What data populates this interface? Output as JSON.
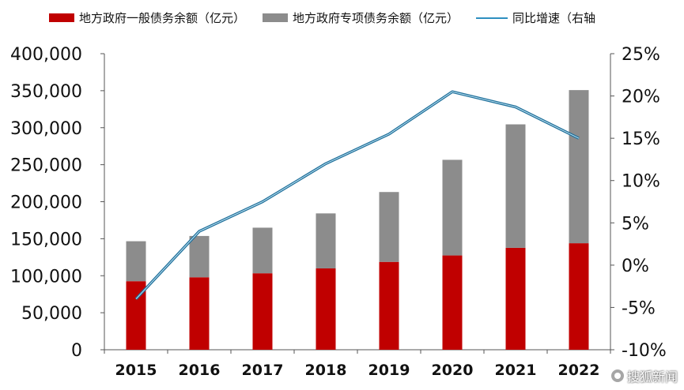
{
  "chart_data": {
    "type": "bar",
    "stacked": true,
    "title": "",
    "categories": [
      "2015",
      "2016",
      "2017",
      "2018",
      "2019",
      "2020",
      "2021",
      "2022"
    ],
    "series": [
      {
        "name": "地方政府一般债务余额（亿元）",
        "type": "bar",
        "axis": "left",
        "color": "#c00000",
        "values": [
          92600,
          97900,
          103300,
          109900,
          118700,
          127400,
          137700,
          143900
        ]
      },
      {
        "name": "地方政府专项债务余额（亿元）",
        "type": "bar",
        "axis": "left",
        "color": "#8c8c8c",
        "values": [
          54000,
          55800,
          61600,
          74300,
          94400,
          129200,
          166800,
          206900
        ]
      },
      {
        "name": "同比增速（右轴",
        "type": "line",
        "axis": "right",
        "color": "#2e8fc0",
        "values": [
          -4.0,
          4.0,
          7.5,
          12.0,
          15.5,
          20.5,
          18.7,
          15.0
        ]
      }
    ],
    "y_left": {
      "min": 0,
      "max": 400000,
      "step": 50000,
      "ticks": [
        "0",
        "50,000",
        "100,000",
        "150,000",
        "200,000",
        "250,000",
        "300,000",
        "350,000",
        "400,000"
      ]
    },
    "y_right": {
      "min": -10,
      "max": 25,
      "step": 5,
      "ticks": [
        "-10%",
        "-5%",
        "0%",
        "5%",
        "10%",
        "15%",
        "20%",
        "25%"
      ]
    },
    "grid": false,
    "legend_position": "top"
  },
  "watermark": "搜狐新闻"
}
